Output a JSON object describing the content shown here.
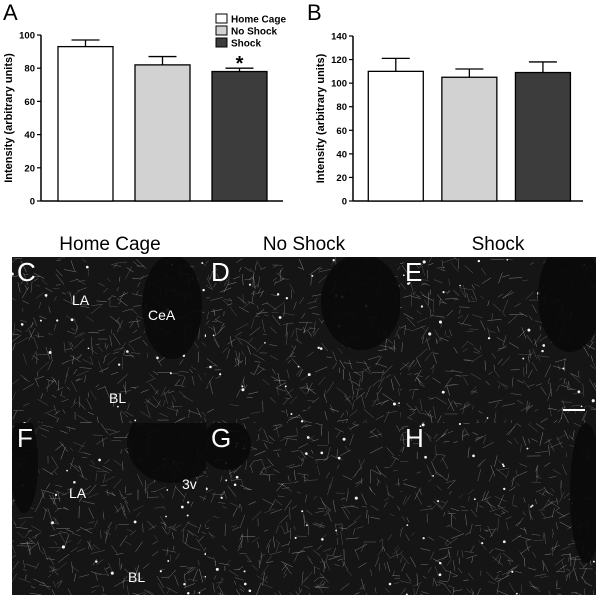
{
  "figure": {
    "panels": {
      "A": "A",
      "B": "B",
      "C": "C",
      "D": "D",
      "E": "E",
      "F": "F",
      "G": "G",
      "H": "H"
    },
    "column_titles": [
      "Home Cage",
      "No Shock",
      "Shock"
    ],
    "region_labels": {
      "LA": "LA",
      "CeA": "CeA",
      "BL": "BL",
      "3v": "3v"
    },
    "colors": {
      "home_cage": "#ffffff",
      "no_shock": "#d2d2d2",
      "shock": "#3c3c3c"
    }
  },
  "chart_data": [
    {
      "type": "bar",
      "panel": "A",
      "categories": [
        "Home Cage",
        "No Shock",
        "Shock"
      ],
      "values": [
        93,
        82,
        78
      ],
      "errors": [
        4,
        5,
        2
      ],
      "ylabel": "Intensity (arbitrary units)",
      "ylim": [
        0,
        100
      ],
      "yticks": [
        0,
        20,
        40,
        60,
        80,
        100
      ],
      "legend": [
        "Home Cage",
        "No Shock",
        "Shock"
      ],
      "legend_position": "top-right",
      "annotations": [
        "*"
      ],
      "grid": false
    },
    {
      "type": "bar",
      "panel": "B",
      "categories": [
        "Home Cage",
        "No Shock",
        "Shock"
      ],
      "values": [
        110,
        105,
        109
      ],
      "errors": [
        11,
        7,
        9
      ],
      "ylabel": "Intensity (arbitrary units)",
      "ylim": [
        0,
        140
      ],
      "yticks": [
        0,
        20,
        40,
        60,
        80,
        100,
        120,
        140
      ],
      "grid": false
    }
  ]
}
